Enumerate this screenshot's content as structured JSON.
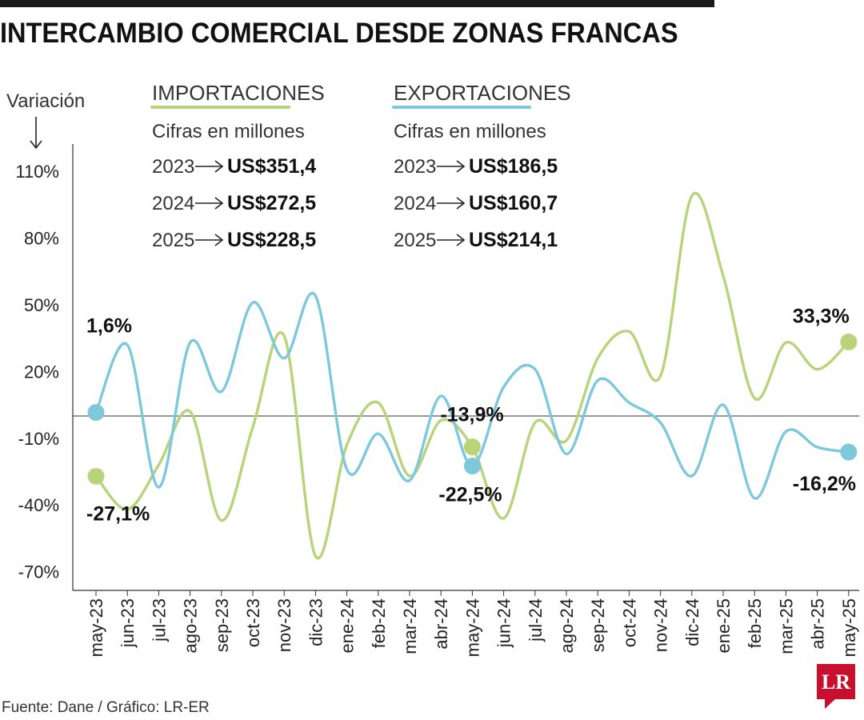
{
  "title": "INTERCAMBIO COMERCIAL DESDE ZONAS FRANCAS",
  "source": "Fuente: Dane / Gráfico: LR-ER",
  "logo_text": "LR",
  "colors": {
    "importaciones": "#b8d47a",
    "exportaciones": "#7ec8dc",
    "axis": "#333333"
  },
  "legend": {
    "importaciones": {
      "heading": "IMPORTACIONES",
      "subtitle": "Cifras en millones",
      "rows": [
        {
          "year": "2023",
          "value": "US$351,4"
        },
        {
          "year": "2024",
          "value": "US$272,5"
        },
        {
          "year": "2025",
          "value": "US$228,5"
        }
      ]
    },
    "exportaciones": {
      "heading": "EXPORTACIONES",
      "subtitle": "Cifras en millones",
      "rows": [
        {
          "year": "2023",
          "value": "US$186,5"
        },
        {
          "year": "2024",
          "value": "US$160,7"
        },
        {
          "year": "2025",
          "value": "US$214,1"
        }
      ]
    }
  },
  "chart_data": {
    "type": "line",
    "ylabel": "Variación",
    "yticks": [
      "110%",
      "80%",
      "50%",
      "20%",
      "-10%",
      "-40%",
      "-70%"
    ],
    "ytick_values": [
      110,
      80,
      50,
      20,
      -10,
      -40,
      -70
    ],
    "ylim": [
      -80,
      120
    ],
    "reference_line": 0,
    "grid": false,
    "categories": [
      "may-23",
      "jun-23",
      "jul-23",
      "ago-23",
      "sep-23",
      "oct-23",
      "nov-23",
      "dic-23",
      "ene-24",
      "feb-24",
      "mar-24",
      "abr-24",
      "may-24",
      "jun-24",
      "jul-24",
      "ago-24",
      "sep-24",
      "oct-24",
      "nov-24",
      "dic-24",
      "ene-25",
      "feb-25",
      "mar-25",
      "abr-25",
      "may-25"
    ],
    "series": [
      {
        "name": "Importaciones",
        "color": "#b8d47a",
        "values": [
          -27.1,
          -42,
          -22,
          2,
          -47,
          -5,
          36,
          -63,
          -13,
          6,
          -27,
          -2,
          -13.9,
          -46,
          -3,
          -11,
          26,
          38,
          18,
          99,
          63,
          8,
          33,
          21,
          33.3
        ]
      },
      {
        "name": "Exportaciones",
        "color": "#7ec8dc",
        "values": [
          1.6,
          32,
          -32,
          33,
          11,
          51,
          26,
          54,
          -24,
          -8,
          -29,
          9,
          -22.5,
          13,
          21,
          -17,
          16,
          6,
          -3,
          -27,
          5,
          -37,
          -7,
          -14,
          -16.2
        ]
      }
    ],
    "annotations": [
      {
        "series": "Exportaciones",
        "index": 0,
        "text": "1,6%"
      },
      {
        "series": "Importaciones",
        "index": 0,
        "text": "-27,1%"
      },
      {
        "series": "Importaciones",
        "index": 12,
        "text": "-13,9%"
      },
      {
        "series": "Exportaciones",
        "index": 12,
        "text": "-22,5%"
      },
      {
        "series": "Importaciones",
        "index": 24,
        "text": "33,3%"
      },
      {
        "series": "Exportaciones",
        "index": 24,
        "text": "-16,2%"
      }
    ]
  }
}
